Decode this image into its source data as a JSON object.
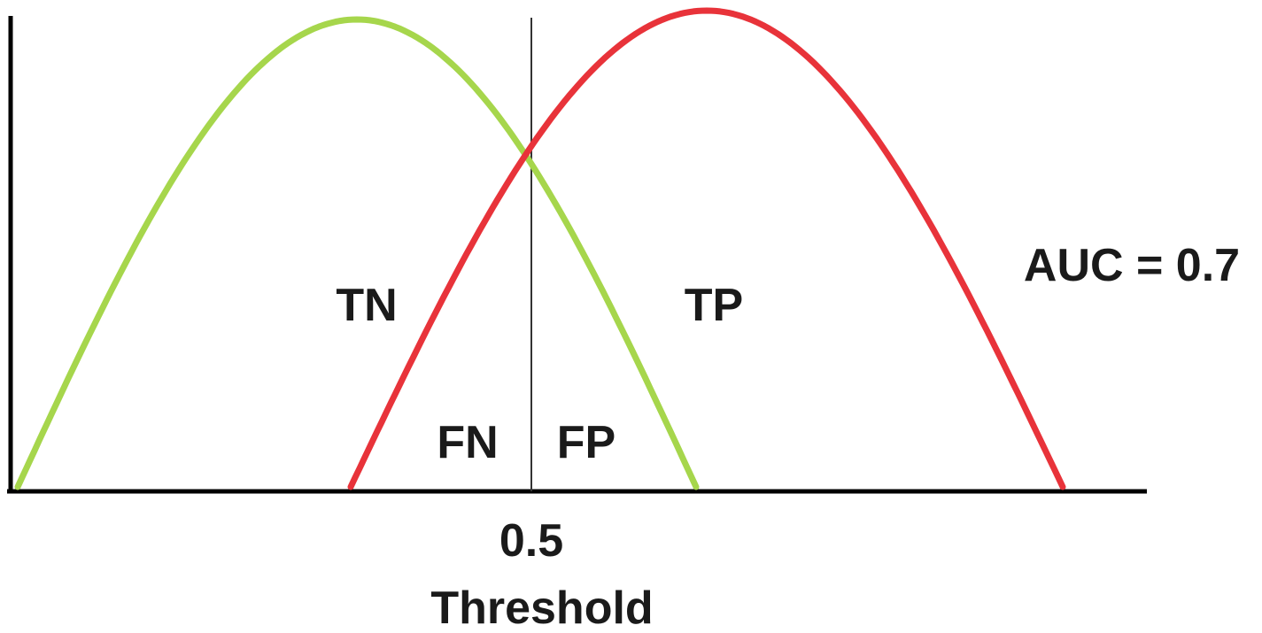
{
  "regions": {
    "tn": "TN",
    "tp": "TP",
    "fn": "FN",
    "fp": "FP"
  },
  "auc_label": "AUC = 0.7",
  "threshold": {
    "value_label": "0.5",
    "axis_label": "Threshold"
  },
  "curves": {
    "negative": {
      "color": "#a6d64c"
    },
    "positive": {
      "color": "#e8333a"
    }
  }
}
